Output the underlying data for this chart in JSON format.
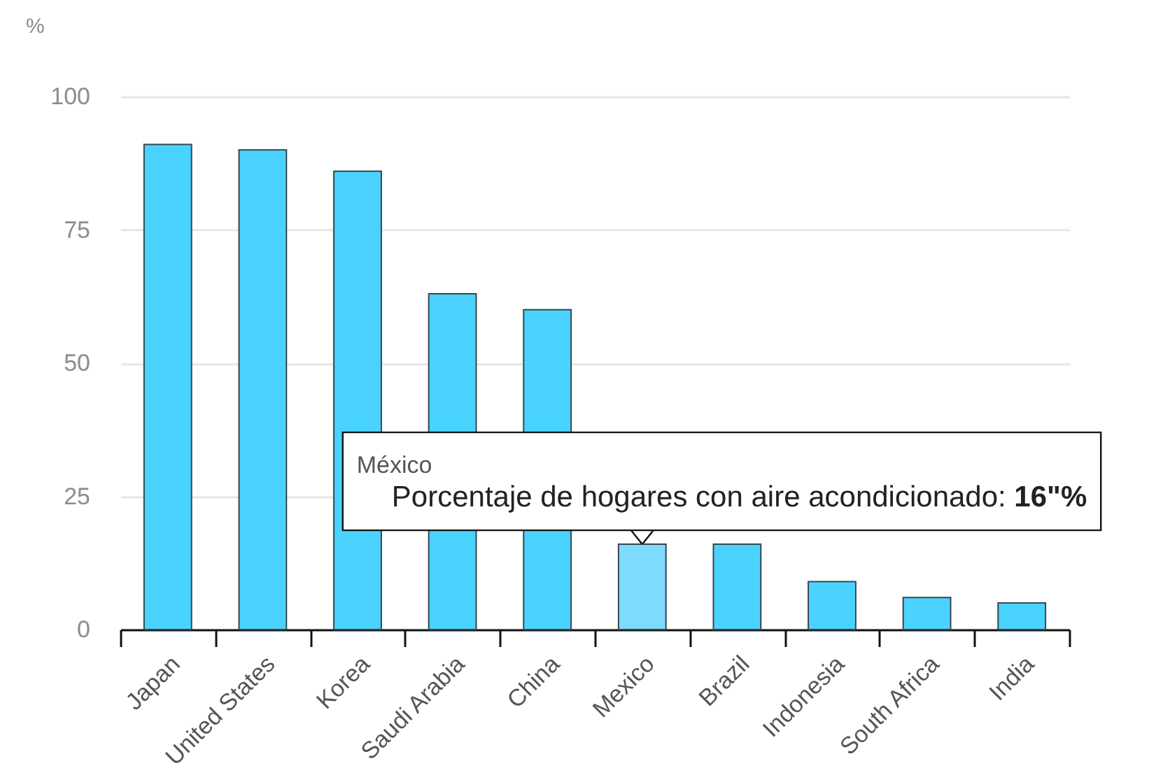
{
  "chart_data": {
    "type": "bar",
    "ylabel": "%",
    "categories": [
      "Japan",
      "United States",
      "Korea",
      "Saudi Arabia",
      "China",
      "Mexico",
      "Brazil",
      "Indonesia",
      "South Africa",
      "India"
    ],
    "values": [
      91,
      90,
      86,
      63,
      60,
      16,
      16,
      9,
      6,
      5
    ],
    "colors": [
      "#4ad3fe",
      "#4ad3fe",
      "#4ad3fe",
      "#4ad3fe",
      "#4ad3fe",
      "#7ddcfd",
      "#4ad3fe",
      "#4ad3fe",
      "#4ad3fe",
      "#4ad3fe"
    ],
    "ylim": [
      0,
      100
    ],
    "yticks": [
      0,
      25,
      50,
      75,
      100
    ],
    "grid": "y",
    "annotations": [
      "México",
      {
        "text": "Porcentaje de hogares con aire acondicionado: 16\"%",
        "x": "Mexico",
        "y": 16
      }
    ]
  }
}
